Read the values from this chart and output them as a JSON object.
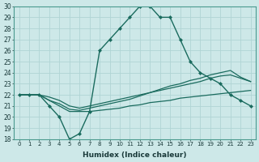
{
  "xlabel": "Humidex (Indice chaleur)",
  "ylabel": "",
  "bg_color": "#cde8e8",
  "grid_color": "#b0d4d4",
  "line_color": "#1a6b5e",
  "xlim": [
    -0.5,
    23.5
  ],
  "ylim": [
    18,
    30
  ],
  "xticks": [
    0,
    1,
    2,
    3,
    4,
    5,
    6,
    7,
    8,
    9,
    10,
    11,
    12,
    13,
    14,
    15,
    16,
    17,
    18,
    19,
    20,
    21,
    22,
    23
  ],
  "yticks": [
    18,
    19,
    20,
    21,
    22,
    23,
    24,
    25,
    26,
    27,
    28,
    29,
    30
  ],
  "series": [
    {
      "x": [
        0,
        1,
        2,
        3,
        4,
        5,
        6,
        7,
        8,
        9,
        10,
        11,
        12,
        13,
        14,
        15,
        16,
        17,
        18,
        19,
        20,
        21,
        22,
        23
      ],
      "y": [
        22,
        22,
        22,
        21,
        20,
        18,
        18.5,
        20.5,
        26,
        27,
        28,
        29,
        30,
        30,
        29,
        29,
        27,
        25,
        24,
        23.5,
        23,
        22,
        21.5,
        21
      ],
      "marker": "D",
      "markersize": 2.0,
      "linewidth": 1.0
    },
    {
      "x": [
        0,
        1,
        2,
        3,
        4,
        5,
        6,
        7,
        8,
        9,
        10,
        11,
        12,
        13,
        14,
        15,
        16,
        17,
        18,
        19,
        20,
        21,
        22,
        23
      ],
      "y": [
        22,
        22,
        22,
        21.5,
        21.0,
        20.5,
        20.5,
        20.5,
        20.6,
        20.7,
        20.8,
        21.0,
        21.1,
        21.3,
        21.4,
        21.5,
        21.7,
        21.8,
        21.9,
        22.0,
        22.1,
        22.2,
        22.3,
        22.4
      ],
      "marker": null,
      "linewidth": 0.9
    },
    {
      "x": [
        0,
        1,
        2,
        3,
        4,
        5,
        6,
        7,
        8,
        9,
        10,
        11,
        12,
        13,
        14,
        15,
        16,
        17,
        18,
        19,
        20,
        21,
        22,
        23
      ],
      "y": [
        22,
        22,
        22,
        21.8,
        21.5,
        21.0,
        20.8,
        21.0,
        21.2,
        21.4,
        21.6,
        21.8,
        22.0,
        22.2,
        22.4,
        22.6,
        22.8,
        23.0,
        23.2,
        23.5,
        23.7,
        23.8,
        23.5,
        23.2
      ],
      "marker": null,
      "linewidth": 0.9
    },
    {
      "x": [
        0,
        1,
        2,
        3,
        4,
        5,
        6,
        7,
        8,
        9,
        10,
        11,
        12,
        13,
        14,
        15,
        16,
        17,
        18,
        19,
        20,
        21,
        22,
        23
      ],
      "y": [
        22,
        22,
        22,
        21.5,
        21.2,
        20.7,
        20.6,
        20.8,
        21.0,
        21.2,
        21.4,
        21.6,
        21.9,
        22.2,
        22.5,
        22.8,
        23.0,
        23.3,
        23.5,
        23.8,
        24.0,
        24.2,
        23.6,
        23.2
      ],
      "marker": null,
      "linewidth": 0.9
    }
  ]
}
